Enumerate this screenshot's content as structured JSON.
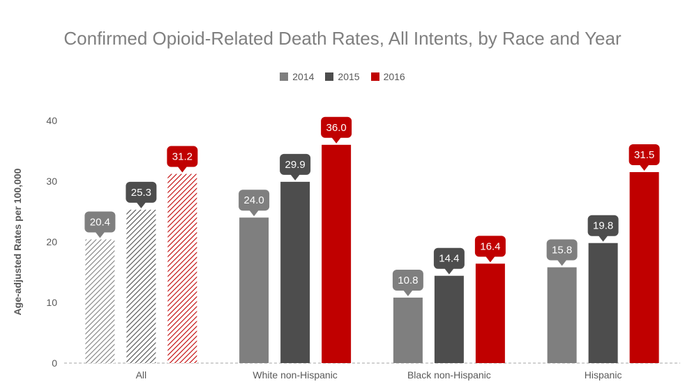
{
  "chart_data": {
    "type": "bar",
    "title": "Confirmed Opioid-Related Death Rates, All Intents, by Race and Year",
    "ylabel": "Age-adjusted Rates per 100,000",
    "xlabel": "",
    "ylim": [
      0,
      40
    ],
    "yticks": [
      0,
      10,
      20,
      30,
      40
    ],
    "categories": [
      "All",
      "White non-Hispanic",
      "Black non-Hispanic",
      "Hispanic"
    ],
    "series": [
      {
        "name": "2014",
        "color": "#7f7f7f",
        "values": [
          20.4,
          24.0,
          10.8,
          15.8
        ],
        "labels": [
          "20.4",
          "24.0",
          "10.8",
          "15.8"
        ]
      },
      {
        "name": "2015",
        "color": "#4d4d4d",
        "values": [
          25.3,
          29.9,
          14.4,
          19.8
        ],
        "labels": [
          "25.3",
          "29.9",
          "14.4",
          "19.8"
        ]
      },
      {
        "name": "2016",
        "color": "#c00000",
        "values": [
          31.2,
          36.0,
          16.4,
          31.5
        ],
        "labels": [
          "31.2",
          "36.0",
          "16.4",
          "31.5"
        ]
      }
    ],
    "hatched_categories": [
      "All"
    ],
    "legend_position": "top-center",
    "grid": false
  }
}
